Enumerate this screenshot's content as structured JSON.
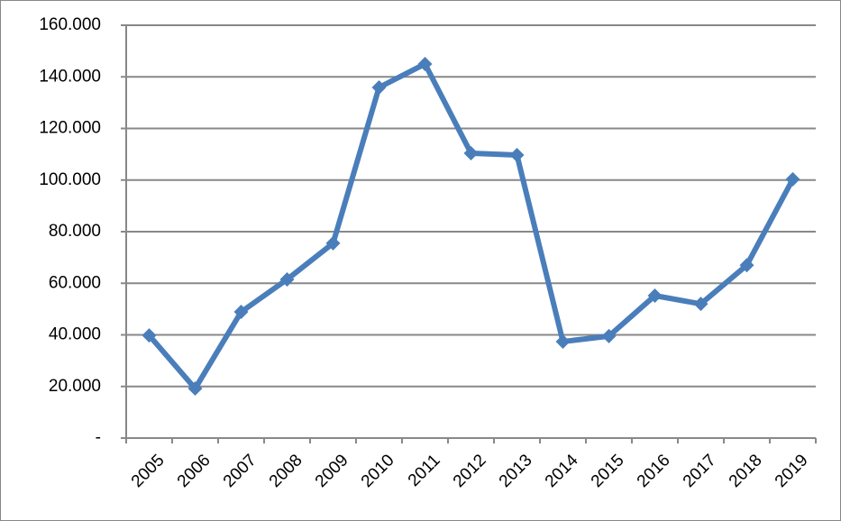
{
  "chart_data": {
    "type": "line",
    "categories": [
      "2005",
      "2006",
      "2007",
      "2008",
      "2009",
      "2010",
      "2011",
      "2012",
      "2013",
      "2014",
      "2015",
      "2016",
      "2017",
      "2018",
      "2019"
    ],
    "series": [
      {
        "color": "#4a7ebb",
        "values": [
          39800,
          19200,
          48900,
          61500,
          75500,
          135900,
          145000,
          110400,
          109700,
          37400,
          39500,
          55200,
          52000,
          67000,
          100300
        ]
      }
    ],
    "ylim": [
      0,
      160000
    ],
    "yticks": [
      {
        "value": 0,
        "label": "-"
      },
      {
        "value": 20000,
        "label": "20.000"
      },
      {
        "value": 40000,
        "label": "40.000"
      },
      {
        "value": 60000,
        "label": "60.000"
      },
      {
        "value": 80000,
        "label": "80.000"
      },
      {
        "value": 100000,
        "label": "100.000"
      },
      {
        "value": 120000,
        "label": "120.000"
      },
      {
        "value": 140000,
        "label": "140.000"
      },
      {
        "value": 160000,
        "label": "160.000"
      }
    ],
    "grid": true
  }
}
